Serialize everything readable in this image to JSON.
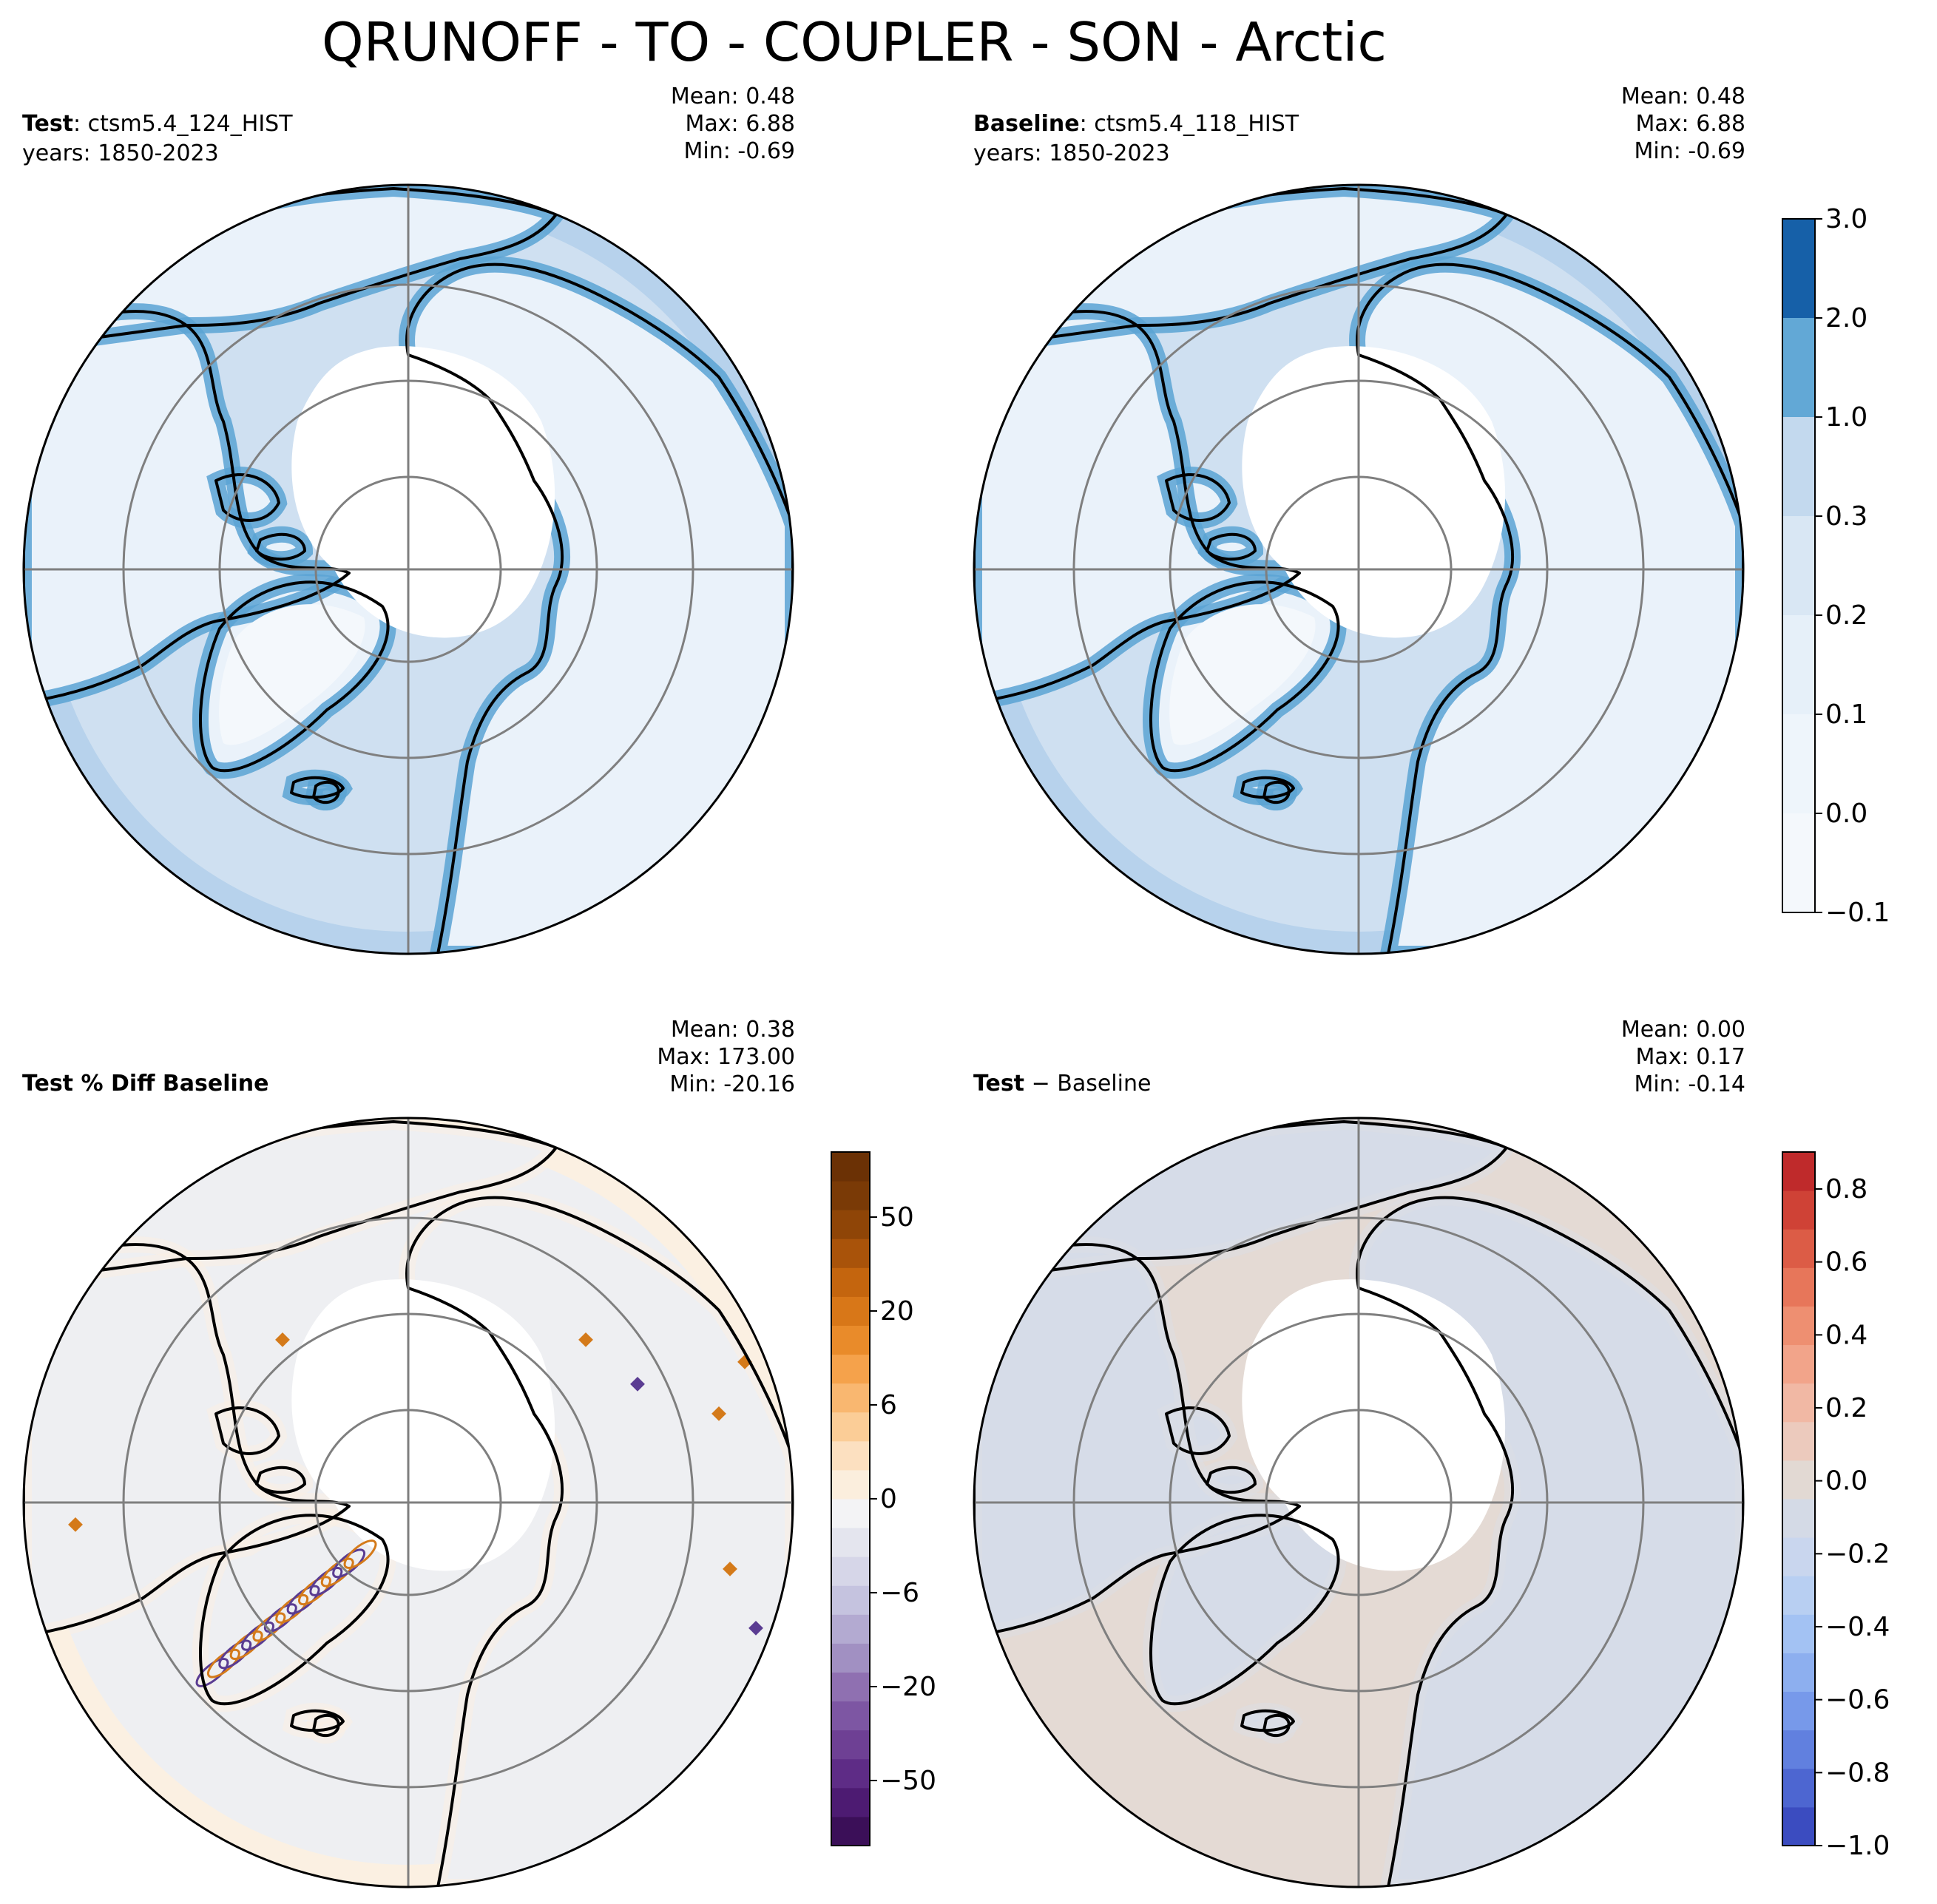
{
  "figure": {
    "title": "QRUNOFF - TO - COUPLER - SON - Arctic"
  },
  "chart_data": [
    {
      "type": "heatmap",
      "projection": "north-polar-stereographic",
      "region": "Arctic",
      "header": {
        "label_bold": "Test",
        "label_rest": ": ctsm5.4_124_HIST",
        "years": "years: 1850-2023"
      },
      "stats": {
        "mean": "Mean:  0.48",
        "max": "Max:  6.88",
        "min": "Min: -0.69"
      },
      "fill_colors": {
        "ocean": "#cfe0f1",
        "band": "#b7d2ec",
        "coast": "#5ba3d3",
        "inland": "#eaf2fa",
        "land": "#ffffff"
      }
    },
    {
      "type": "heatmap",
      "projection": "north-polar-stereographic",
      "region": "Arctic",
      "header": {
        "label_bold": "Baseline",
        "label_rest": ": ctsm5.4_118_HIST",
        "years": "years: 1850-2023"
      },
      "stats": {
        "mean": "Mean:  0.48",
        "max": "Max:  6.88",
        "min": "Min: -0.69"
      },
      "fill_colors": {
        "ocean": "#cfe0f1",
        "band": "#b7d2ec",
        "coast": "#5ba3d3",
        "inland": "#eaf2fa",
        "land": "#ffffff"
      }
    },
    {
      "type": "heatmap",
      "projection": "north-polar-stereographic",
      "region": "Arctic",
      "header": {
        "label_bold": "Test % Diff Baseline",
        "label_rest": "",
        "years": ""
      },
      "stats": {
        "mean": "Mean:  0.38",
        "max": "Max: 173.00",
        "min": "Min: -20.16"
      },
      "fill_colors": {
        "ocean": "#eeeff2",
        "band": "#fbf0e2",
        "coast": "#fbf0e2",
        "inland": "#eeeff2",
        "land": "#ffffff"
      },
      "anomaly_colors": {
        "positive": "#d47a1a",
        "negative": "#5a3c92"
      }
    },
    {
      "type": "heatmap",
      "projection": "north-polar-stereographic",
      "region": "Arctic",
      "header": {
        "label_bold": "Test",
        "label_rest": " − Baseline",
        "label_bold2": "Baseline",
        "years": ""
      },
      "stats": {
        "mean": "Mean:  0.00",
        "max": "Max:  0.17",
        "min": "Min: -0.14"
      },
      "fill_colors": {
        "ocean": "#e4dad4",
        "band": "#e4dad4",
        "coast": "#dcdee4",
        "inland": "#d6dce8",
        "land": "#ffffff"
      }
    }
  ],
  "colorbars": [
    {
      "name": "abs-colorbar",
      "ticks": [
        "3.0",
        "2.0",
        "1.0",
        "0.3",
        "0.2",
        "0.1",
        "0.0",
        "−0.1"
      ],
      "colors": [
        "#1660a8",
        "#62a8d6",
        "#c3d9ee",
        "#d9e7f4",
        "#e6f0f9",
        "#eef5fb",
        "#f4f8fc"
      ]
    },
    {
      "name": "pct-colorbar",
      "ticks": [
        "50",
        "20",
        "6",
        "0",
        "−6",
        "−20",
        "−50"
      ],
      "colors": [
        "#3b0f58",
        "#4d1b72",
        "#5e2c86",
        "#6e4094",
        "#7d56a3",
        "#8f70b1",
        "#a190c2",
        "#b3aad1",
        "#c5c3df",
        "#d6d6e8",
        "#e4e5ee",
        "#f3f3f5",
        "#fbeedd",
        "#fce0c0",
        "#fbcd97",
        "#f9b770",
        "#f5a24b",
        "#e98b2a",
        "#d87718",
        "#c4650e",
        "#a9530a",
        "#8f4507",
        "#7a3a06",
        "#6b3105"
      ]
    },
    {
      "name": "diff-colorbar",
      "ticks": [
        "0.8",
        "0.6",
        "0.4",
        "0.2",
        "0.0",
        "−0.2",
        "−0.4",
        "−0.6",
        "−0.8",
        "−1.0"
      ],
      "colors": [
        "#3b4cc0",
        "#4d66d1",
        "#6180df",
        "#7799ea",
        "#8dafef",
        "#a3c2f3",
        "#b8cff2",
        "#c9d6ee",
        "#d4dae6",
        "#e2d9d3",
        "#eccabd",
        "#f1b8a4",
        "#f2a48a",
        "#ee8f71",
        "#e7765a",
        "#dc5c46",
        "#cf4236",
        "#bf2a2b"
      ]
    }
  ]
}
